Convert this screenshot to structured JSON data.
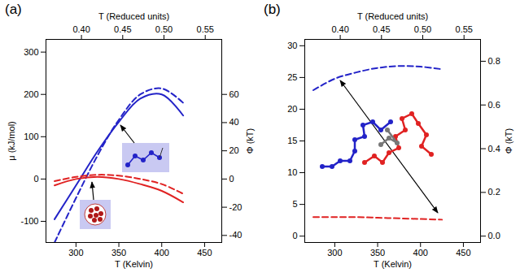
{
  "chart_data": [
    {
      "type": "line",
      "title": "(a)",
      "xlabel": "T (Kelvin)",
      "x2label": "T (Reduced units)",
      "ylabel": "μ (kJ/mol)",
      "y2label": "Φ (kT)",
      "x": [
        275,
        300,
        325,
        350,
        375,
        400,
        425
      ],
      "xlim": [
        265,
        470
      ],
      "xticks": [
        300,
        350,
        400,
        450
      ],
      "x2lim": [
        0.357,
        0.57
      ],
      "x2ticks": [
        {
          "value": 0.4,
          "label": "0.40"
        },
        {
          "value": 0.45,
          "label": "0.45"
        },
        {
          "value": 0.5,
          "label": "0.50"
        },
        {
          "value": 0.55,
          "label": "0.55"
        }
      ],
      "ylim": [
        -150,
        330
      ],
      "yticks": [
        -100,
        0,
        100,
        200,
        300
      ],
      "y2lim": [
        -45,
        99
      ],
      "y2ticks": [
        -40,
        -20,
        0,
        20,
        40,
        60
      ],
      "series": [
        {
          "color": "#2323c8",
          "line_style": "solid",
          "values": [
            -95,
            -15,
            65,
            135,
            190,
            200,
            150
          ]
        },
        {
          "color": "#2323c8",
          "line_style": "dashed",
          "values": [
            -150,
            -45,
            55,
            140,
            200,
            214,
            180
          ]
        },
        {
          "color": "#e02222",
          "line_style": "solid",
          "values": [
            -15,
            0,
            5,
            0,
            -12,
            -28,
            -55
          ]
        },
        {
          "color": "#e02222",
          "line_style": "dashed",
          "values": [
            -5,
            5,
            10,
            8,
            0,
            -12,
            -35
          ]
        }
      ]
    },
    {
      "type": "line",
      "title": "(b)",
      "xlabel": "T (Kelvin)",
      "x2label": "T (Reduced units)",
      "y2label": "Φ (kT)",
      "x": [
        275,
        300,
        325,
        350,
        375,
        400,
        425
      ],
      "xlim": [
        265,
        470
      ],
      "xticks": [
        300,
        350,
        400,
        450
      ],
      "x2lim": [
        0.357,
        0.57
      ],
      "x2ticks": [
        {
          "value": 0.4,
          "label": "0.40"
        },
        {
          "value": 0.45,
          "label": "0.45"
        },
        {
          "value": 0.5,
          "label": "0.50"
        },
        {
          "value": 0.55,
          "label": "0.55"
        }
      ],
      "ylim": [
        -1,
        31
      ],
      "yticks": [
        0,
        5,
        10,
        15,
        20,
        25,
        30
      ],
      "y2lim": [
        -0.029,
        0.9
      ],
      "y2ticks": [
        {
          "value": 0,
          "label": "0.0"
        },
        {
          "value": 0.2,
          "label": "0.2"
        },
        {
          "value": 0.4,
          "label": "0.4"
        },
        {
          "value": 0.6,
          "label": "0.6"
        },
        {
          "value": 0.8,
          "label": "0.8"
        }
      ],
      "series": [
        {
          "color": "#2323c8",
          "line_style": "dashed",
          "values": [
            23,
            24.8,
            25.8,
            26.5,
            26.8,
            26.7,
            26.3
          ]
        },
        {
          "color": "#e02222",
          "line_style": "dashed",
          "values": [
            3.0,
            3.0,
            3.0,
            2.9,
            2.8,
            2.7,
            2.6
          ]
        }
      ]
    }
  ]
}
